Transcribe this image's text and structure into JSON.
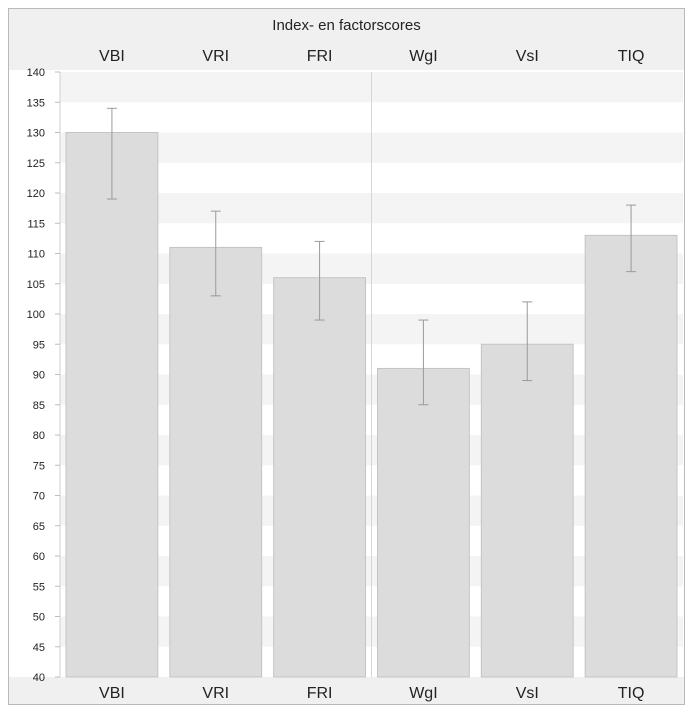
{
  "chart_data": {
    "type": "bar",
    "title": "Index- en factorscores",
    "categories": [
      "VBI",
      "VRI",
      "FRI",
      "WgI",
      "VsI",
      "TIQ"
    ],
    "series": [
      {
        "values": [
          130,
          111,
          106,
          91,
          95,
          113
        ],
        "error_low": [
          119,
          103,
          99,
          85,
          89,
          107
        ],
        "error_high": [
          134,
          117,
          112,
          99,
          102,
          118
        ]
      }
    ],
    "ylim": [
      40,
      140
    ],
    "yticks": [
      "40",
      "45",
      "50",
      "55",
      "60",
      "65",
      "70",
      "75",
      "80",
      "85",
      "90",
      "95",
      "100",
      "105",
      "110",
      "115",
      "120",
      "125",
      "130",
      "135",
      "140"
    ],
    "group_divider_after": 3,
    "grid": "alternating-bands",
    "colors": {
      "bar_fill": "#dcdcdc",
      "bar_stroke": "#c4c4c4",
      "error_bar": "#9a9a9a",
      "band": "#f4f4f4",
      "header_bg": "#f0f0f0",
      "frame": "#b9b9b9"
    }
  }
}
